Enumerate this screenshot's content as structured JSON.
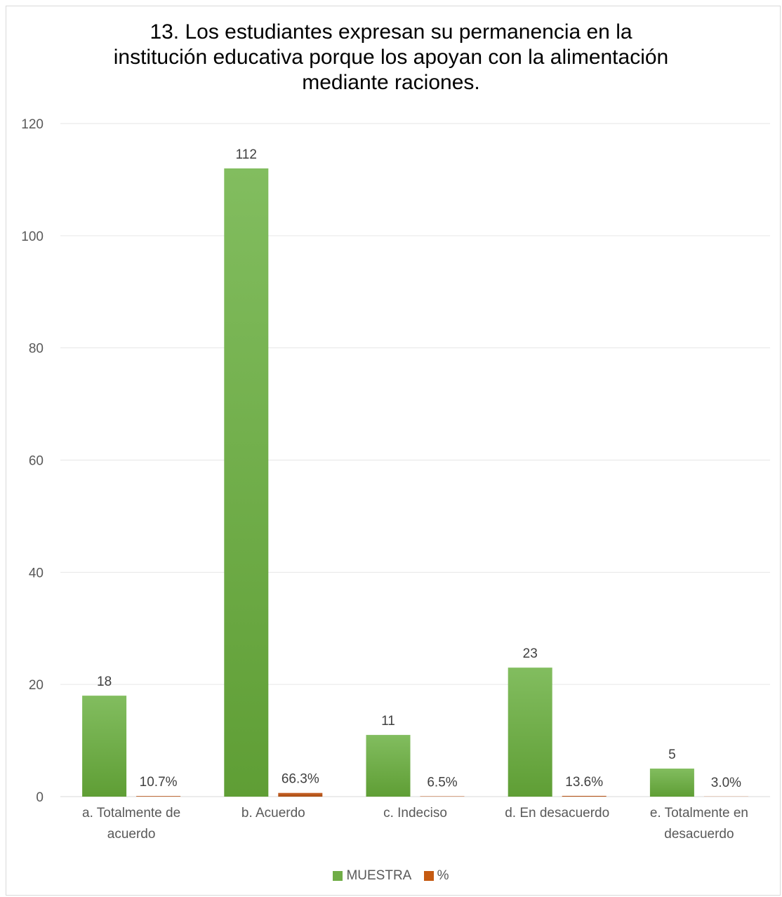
{
  "chart_data": {
    "type": "bar",
    "title": "13. Los estudiantes expresan su permanencia en la\ninstitución educativa porque los apoyan con la alimentación\nmediante raciones.",
    "categories": [
      [
        "a. Totalmente de",
        "acuerdo"
      ],
      [
        "b. Acuerdo"
      ],
      [
        "c. Indeciso"
      ],
      [
        "d. En desacuerdo"
      ],
      [
        "e. Totalmente en",
        "desacuerdo"
      ]
    ],
    "series": [
      {
        "name": "MUESTRA",
        "color": "#70ad47",
        "values": [
          18,
          112,
          11,
          23,
          5
        ],
        "labels": [
          "18",
          "112",
          "11",
          "23",
          "5"
        ]
      },
      {
        "name": "%",
        "color": "#c55a11",
        "values": [
          0.107,
          0.663,
          0.065,
          0.136,
          0.03
        ],
        "labels": [
          "10.7%",
          "66.3%",
          "6.5%",
          "13.6%",
          "3.0%"
        ]
      }
    ],
    "ylim": [
      0,
      120
    ],
    "yticks": [
      0,
      20,
      40,
      60,
      80,
      100,
      120
    ],
    "grid": true,
    "legend_position": "bottom"
  }
}
